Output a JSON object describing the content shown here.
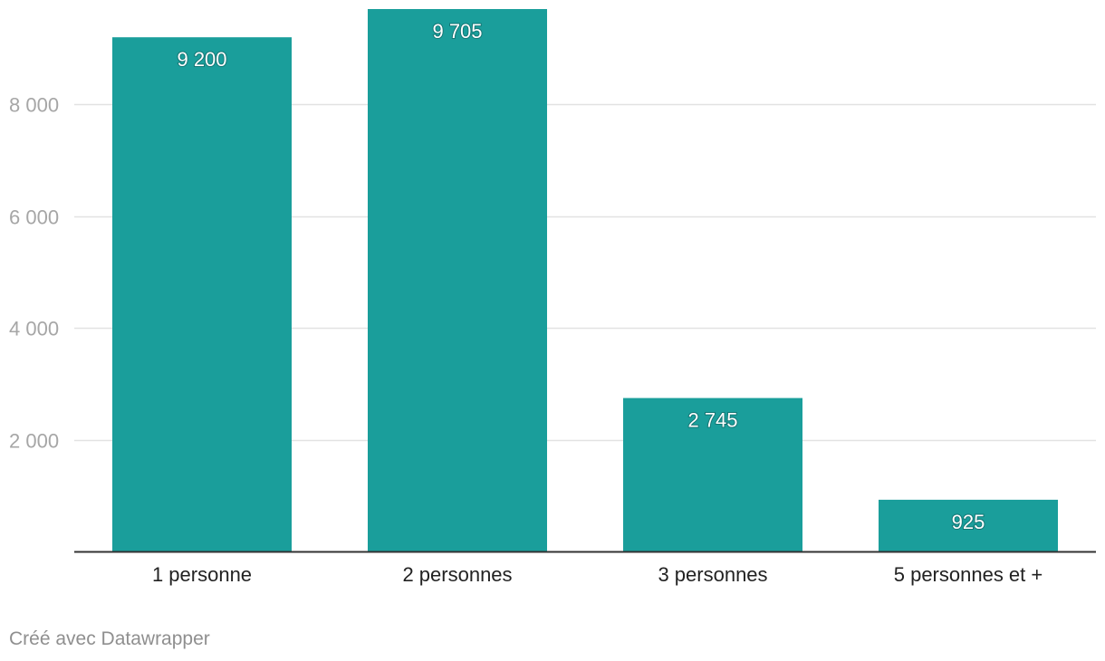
{
  "chart_data": {
    "type": "bar",
    "title": "",
    "xlabel": "",
    "ylabel": "",
    "categories": [
      "1 personne",
      "2 personnes",
      "3 personnes",
      "5 personnes et +"
    ],
    "values": [
      9200,
      9705,
      2745,
      925
    ],
    "value_labels": [
      "9 200",
      "9 705",
      "2 745",
      "925"
    ],
    "y_ticks": [
      2000,
      4000,
      6000,
      8000
    ],
    "y_tick_labels": [
      "2 000",
      "4 000",
      "6 000",
      "8 000"
    ],
    "ylim": [
      0,
      9705
    ],
    "grid": true,
    "legend": "none",
    "bar_color": "#1a9e9b"
  },
  "credit": "Créé avec Datawrapper"
}
